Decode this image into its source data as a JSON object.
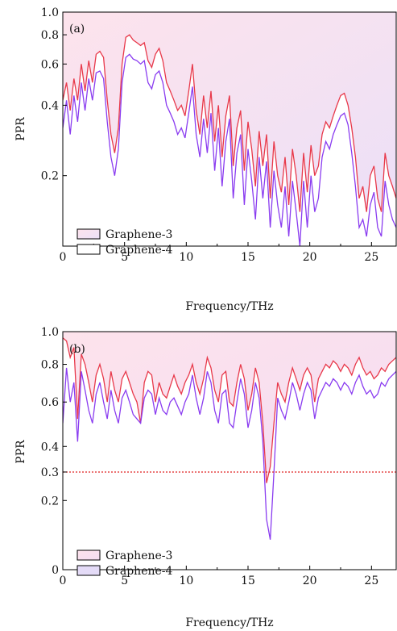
{
  "colors": {
    "graphene3_line": "#e8384a",
    "graphene4_line": "#8a3cf0",
    "fill_top": "#fde6ee",
    "fill_bottom_b": "#f3dcf6",
    "threshold": "#e02020"
  },
  "chart_data": [
    {
      "type": "line",
      "panel_label": "(a)",
      "xlabel": "Frequency/THz",
      "ylabel": "PPR",
      "xlim": [
        0,
        27
      ],
      "ylim": [
        0.1,
        1.0
      ],
      "yscale": "log",
      "x_ticks": [
        0,
        5,
        10,
        15,
        20,
        25
      ],
      "x_tick_labels": [
        "0",
        "5",
        "10",
        "15",
        "20",
        "25"
      ],
      "y_ticks": [
        0.2,
        0.4,
        0.6,
        0.8,
        1.0
      ],
      "y_tick_labels": [
        "0.2",
        "0.4",
        "0.6",
        "0.8",
        "1.0"
      ],
      "legend": {
        "position": "bottom-left",
        "entries": [
          "Graphene-3",
          "Graphene-4"
        ]
      },
      "series": [
        {
          "name": "Graphene-3",
          "x": [
            0,
            0.3,
            0.6,
            0.9,
            1.2,
            1.5,
            1.8,
            2.1,
            2.4,
            2.7,
            3.0,
            3.3,
            3.6,
            3.9,
            4.2,
            4.5,
            4.8,
            5.1,
            5.4,
            5.7,
            6.0,
            6.3,
            6.6,
            6.9,
            7.2,
            7.5,
            7.8,
            8.1,
            8.4,
            8.7,
            9.0,
            9.3,
            9.6,
            9.9,
            10.2,
            10.5,
            10.8,
            11.1,
            11.4,
            11.7,
            12.0,
            12.3,
            12.6,
            12.9,
            13.2,
            13.5,
            13.8,
            14.1,
            14.4,
            14.7,
            15.0,
            15.3,
            15.6,
            15.9,
            16.2,
            16.5,
            16.8,
            17.1,
            17.4,
            17.7,
            18.0,
            18.3,
            18.6,
            18.9,
            19.2,
            19.5,
            19.8,
            20.1,
            20.4,
            20.7,
            21.0,
            21.3,
            21.6,
            21.9,
            22.2,
            22.5,
            22.8,
            23.1,
            23.4,
            23.7,
            24.0,
            24.3,
            24.6,
            24.9,
            25.2,
            25.5,
            25.8,
            26.1,
            26.4,
            26.7,
            27.0
          ],
          "y": [
            0.42,
            0.5,
            0.38,
            0.52,
            0.42,
            0.6,
            0.46,
            0.62,
            0.5,
            0.66,
            0.68,
            0.64,
            0.42,
            0.3,
            0.25,
            0.32,
            0.6,
            0.78,
            0.8,
            0.76,
            0.74,
            0.72,
            0.74,
            0.62,
            0.58,
            0.66,
            0.7,
            0.62,
            0.5,
            0.46,
            0.42,
            0.38,
            0.4,
            0.36,
            0.46,
            0.6,
            0.38,
            0.3,
            0.44,
            0.32,
            0.46,
            0.28,
            0.4,
            0.24,
            0.36,
            0.44,
            0.22,
            0.32,
            0.38,
            0.21,
            0.34,
            0.26,
            0.18,
            0.31,
            0.22,
            0.3,
            0.16,
            0.28,
            0.2,
            0.17,
            0.24,
            0.15,
            0.26,
            0.2,
            0.14,
            0.25,
            0.17,
            0.27,
            0.2,
            0.22,
            0.3,
            0.34,
            0.32,
            0.36,
            0.4,
            0.44,
            0.45,
            0.4,
            0.32,
            0.24,
            0.16,
            0.18,
            0.14,
            0.2,
            0.22,
            0.16,
            0.14,
            0.25,
            0.2,
            0.18,
            0.16
          ]
        },
        {
          "name": "Graphene-4",
          "x": [
            0,
            0.3,
            0.6,
            0.9,
            1.2,
            1.5,
            1.8,
            2.1,
            2.4,
            2.7,
            3.0,
            3.3,
            3.6,
            3.9,
            4.2,
            4.5,
            4.8,
            5.1,
            5.4,
            5.7,
            6.0,
            6.3,
            6.6,
            6.9,
            7.2,
            7.5,
            7.8,
            8.1,
            8.4,
            8.7,
            9.0,
            9.3,
            9.6,
            9.9,
            10.2,
            10.5,
            10.8,
            11.1,
            11.4,
            11.7,
            12.0,
            12.3,
            12.6,
            12.9,
            13.2,
            13.5,
            13.8,
            14.1,
            14.4,
            14.7,
            15.0,
            15.3,
            15.6,
            15.9,
            16.2,
            16.5,
            16.8,
            17.1,
            17.4,
            17.7,
            18.0,
            18.3,
            18.6,
            18.9,
            19.2,
            19.5,
            19.8,
            20.1,
            20.4,
            20.7,
            21.0,
            21.3,
            21.6,
            21.9,
            22.2,
            22.5,
            22.8,
            23.1,
            23.4,
            23.7,
            24.0,
            24.3,
            24.6,
            24.9,
            25.2,
            25.5,
            25.8,
            26.1,
            26.4,
            26.7,
            27.0
          ],
          "y": [
            0.32,
            0.42,
            0.3,
            0.44,
            0.34,
            0.5,
            0.38,
            0.52,
            0.42,
            0.55,
            0.56,
            0.52,
            0.34,
            0.24,
            0.2,
            0.26,
            0.5,
            0.64,
            0.66,
            0.63,
            0.62,
            0.6,
            0.62,
            0.5,
            0.47,
            0.54,
            0.56,
            0.5,
            0.4,
            0.37,
            0.34,
            0.3,
            0.32,
            0.29,
            0.37,
            0.48,
            0.3,
            0.24,
            0.35,
            0.25,
            0.37,
            0.21,
            0.32,
            0.18,
            0.28,
            0.35,
            0.16,
            0.25,
            0.3,
            0.15,
            0.26,
            0.19,
            0.13,
            0.24,
            0.16,
            0.23,
            0.12,
            0.21,
            0.15,
            0.12,
            0.18,
            0.11,
            0.19,
            0.14,
            0.1,
            0.19,
            0.12,
            0.2,
            0.14,
            0.16,
            0.24,
            0.28,
            0.26,
            0.3,
            0.33,
            0.36,
            0.37,
            0.33,
            0.25,
            0.18,
            0.12,
            0.13,
            0.11,
            0.15,
            0.17,
            0.12,
            0.11,
            0.19,
            0.15,
            0.13,
            0.12
          ]
        }
      ]
    },
    {
      "type": "line",
      "panel_label": "(b)",
      "xlabel": "Frequency/THz",
      "ylabel": "PPR",
      "xlim": [
        0,
        27
      ],
      "ylim": [
        0,
        1.0
      ],
      "yscale": "log1p",
      "x_ticks": [
        0,
        5,
        10,
        15,
        20,
        25
      ],
      "x_tick_labels": [
        "0",
        "5",
        "10",
        "15",
        "20",
        "25"
      ],
      "y_ticks": [
        0,
        0.2,
        0.3,
        0.4,
        0.6,
        0.8,
        1.0
      ],
      "y_tick_labels": [
        "0",
        "0.2",
        "0.3",
        "0.4",
        "0.6",
        "0.8",
        "1.0"
      ],
      "threshold": 0.3,
      "legend": {
        "position": "bottom-left",
        "entries": [
          "Graphene-3",
          "Graphene-4"
        ]
      },
      "series": [
        {
          "name": "Graphene-3",
          "x": [
            0,
            0.3,
            0.6,
            0.9,
            1.2,
            1.5,
            1.8,
            2.1,
            2.4,
            2.7,
            3.0,
            3.3,
            3.6,
            3.9,
            4.2,
            4.5,
            4.8,
            5.1,
            5.4,
            5.7,
            6.0,
            6.3,
            6.6,
            6.9,
            7.2,
            7.5,
            7.8,
            8.1,
            8.4,
            8.7,
            9.0,
            9.3,
            9.6,
            9.9,
            10.2,
            10.5,
            10.8,
            11.1,
            11.4,
            11.7,
            12.0,
            12.3,
            12.6,
            12.9,
            13.2,
            13.5,
            13.8,
            14.1,
            14.4,
            14.7,
            15.0,
            15.3,
            15.6,
            15.9,
            16.2,
            16.5,
            16.8,
            17.1,
            17.4,
            17.7,
            18.0,
            18.3,
            18.6,
            18.9,
            19.2,
            19.5,
            19.8,
            20.1,
            20.4,
            20.7,
            21.0,
            21.3,
            21.6,
            21.9,
            22.2,
            22.5,
            22.8,
            23.1,
            23.4,
            23.7,
            24.0,
            24.3,
            24.6,
            24.9,
            25.2,
            25.5,
            25.8,
            26.1,
            26.4,
            26.7,
            27.0
          ],
          "y": [
            0.96,
            0.94,
            0.84,
            0.9,
            0.52,
            0.86,
            0.8,
            0.7,
            0.6,
            0.74,
            0.8,
            0.72,
            0.6,
            0.76,
            0.66,
            0.6,
            0.72,
            0.76,
            0.7,
            0.64,
            0.6,
            0.5,
            0.7,
            0.76,
            0.74,
            0.6,
            0.7,
            0.64,
            0.62,
            0.68,
            0.74,
            0.68,
            0.64,
            0.7,
            0.74,
            0.8,
            0.7,
            0.64,
            0.72,
            0.84,
            0.78,
            0.66,
            0.6,
            0.74,
            0.76,
            0.6,
            0.58,
            0.7,
            0.8,
            0.72,
            0.56,
            0.64,
            0.78,
            0.7,
            0.5,
            0.26,
            0.32,
            0.5,
            0.7,
            0.64,
            0.6,
            0.7,
            0.78,
            0.72,
            0.66,
            0.74,
            0.78,
            0.74,
            0.6,
            0.72,
            0.76,
            0.8,
            0.78,
            0.82,
            0.8,
            0.76,
            0.8,
            0.78,
            0.74,
            0.8,
            0.84,
            0.78,
            0.74,
            0.76,
            0.72,
            0.74,
            0.78,
            0.76,
            0.8,
            0.82,
            0.84
          ]
        },
        {
          "name": "Graphene-4",
          "x": [
            0,
            0.3,
            0.6,
            0.9,
            1.2,
            1.5,
            1.8,
            2.1,
            2.4,
            2.7,
            3.0,
            3.3,
            3.6,
            3.9,
            4.2,
            4.5,
            4.8,
            5.1,
            5.4,
            5.7,
            6.0,
            6.3,
            6.6,
            6.9,
            7.2,
            7.5,
            7.8,
            8.1,
            8.4,
            8.7,
            9.0,
            9.3,
            9.6,
            9.9,
            10.2,
            10.5,
            10.8,
            11.1,
            11.4,
            11.7,
            12.0,
            12.3,
            12.6,
            12.9,
            13.2,
            13.5,
            13.8,
            14.1,
            14.4,
            14.7,
            15.0,
            15.3,
            15.6,
            15.9,
            16.2,
            16.5,
            16.8,
            17.1,
            17.4,
            17.7,
            18.0,
            18.3,
            18.6,
            18.9,
            19.2,
            19.5,
            19.8,
            20.1,
            20.4,
            20.7,
            21.0,
            21.3,
            21.6,
            21.9,
            22.2,
            22.5,
            22.8,
            23.1,
            23.4,
            23.7,
            24.0,
            24.3,
            24.6,
            24.9,
            25.2,
            25.5,
            25.8,
            26.1,
            26.4,
            26.7,
            27.0
          ],
          "y": [
            0.5,
            0.78,
            0.6,
            0.7,
            0.42,
            0.76,
            0.66,
            0.56,
            0.5,
            0.64,
            0.7,
            0.6,
            0.52,
            0.66,
            0.56,
            0.5,
            0.62,
            0.66,
            0.6,
            0.54,
            0.52,
            0.5,
            0.62,
            0.66,
            0.64,
            0.54,
            0.62,
            0.56,
            0.54,
            0.6,
            0.62,
            0.58,
            0.54,
            0.6,
            0.64,
            0.74,
            0.62,
            0.54,
            0.62,
            0.76,
            0.7,
            0.56,
            0.5,
            0.64,
            0.66,
            0.5,
            0.48,
            0.6,
            0.72,
            0.64,
            0.48,
            0.56,
            0.7,
            0.62,
            0.42,
            0.14,
            0.08,
            0.3,
            0.62,
            0.56,
            0.52,
            0.6,
            0.7,
            0.64,
            0.56,
            0.64,
            0.7,
            0.66,
            0.52,
            0.62,
            0.66,
            0.7,
            0.68,
            0.72,
            0.7,
            0.66,
            0.7,
            0.68,
            0.64,
            0.7,
            0.74,
            0.68,
            0.64,
            0.66,
            0.62,
            0.64,
            0.7,
            0.68,
            0.72,
            0.74,
            0.76
          ]
        }
      ]
    }
  ]
}
